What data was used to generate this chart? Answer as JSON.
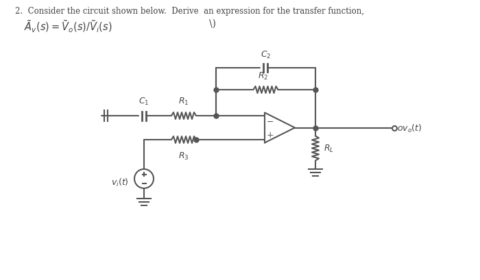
{
  "bg_color": "#ffffff",
  "line_color": "#555555",
  "text_color": "#444444",
  "title_line1": "2.  Consider the circuit shown below.  Derive  an expression for the transfer function,",
  "title_line2": "$\\tilde{A}_v(s) = \\tilde{V}_o(s)/\\tilde{V}_i(s)$",
  "label_C1": "C$_1$",
  "label_R1": "R$_1$",
  "label_C2": "C$_2$",
  "label_R2": "R$_2$",
  "label_R3": "R$_3$",
  "label_RL": "R$_L$",
  "label_vi": "v$_i$(t)",
  "label_vo": "ov$_o$(t)"
}
